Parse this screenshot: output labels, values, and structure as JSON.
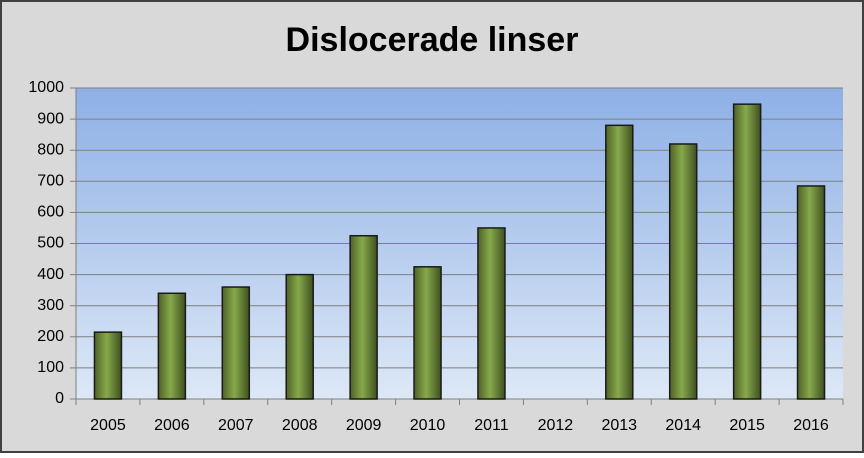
{
  "chart_data": {
    "type": "bar",
    "title": "Dislocerade linser",
    "categories": [
      "2005",
      "2006",
      "2007",
      "2008",
      "2009",
      "2010",
      "2011",
      "2012",
      "2013",
      "2014",
      "2015",
      "2016"
    ],
    "values": [
      215,
      340,
      360,
      400,
      525,
      425,
      550,
      null,
      880,
      820,
      948,
      685
    ],
    "color": "#77933c",
    "ylim": [
      0,
      1000
    ],
    "yticks": [
      0,
      100,
      200,
      300,
      400,
      500,
      600,
      700,
      800,
      900,
      1000
    ],
    "grid": true
  }
}
